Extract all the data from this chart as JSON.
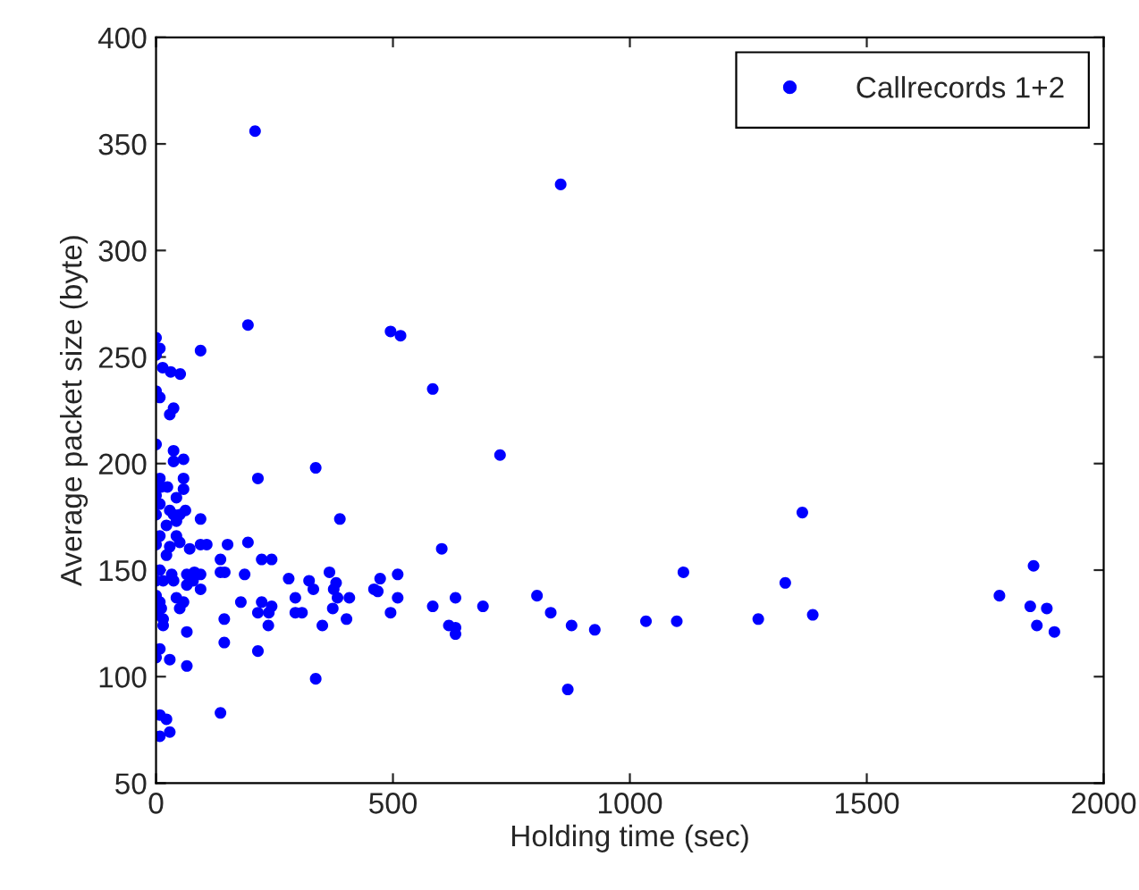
{
  "chart_data": {
    "type": "scatter",
    "xlabel": "Holding time (sec)",
    "ylabel": "Average packet size (byte)",
    "xlim": [
      0,
      2000
    ],
    "ylim": [
      50,
      400
    ],
    "xticks": [
      0,
      500,
      1000,
      1500,
      2000
    ],
    "yticks": [
      50,
      100,
      150,
      200,
      250,
      300,
      350,
      400
    ],
    "grid": false,
    "legend": "top right",
    "marker": "circle",
    "series": [
      {
        "name": "Callrecords 1+2",
        "color": "#0000ff",
        "x": [
          584,
          726,
          603,
          584,
          632,
          618,
          632,
          632,
          690,
          804,
          833,
          877,
          869,
          926,
          1034,
          1099,
          1113,
          1271,
          1328,
          1364,
          1386,
          1780,
          1845,
          1852,
          1859,
          1880,
          1896,
          209,
          854,
          0,
          8,
          0,
          94,
          194,
          495,
          516,
          14,
          31,
          51,
          0,
          8,
          37,
          29,
          0,
          37,
          37,
          58,
          337,
          215,
          8,
          58,
          11,
          24,
          58,
          0,
          43,
          8,
          0,
          29,
          37,
          62,
          50,
          94,
          388,
          22,
          43,
          8,
          43,
          50,
          0,
          29,
          71,
          94,
          107,
          151,
          194,
          22,
          136,
          223,
          244,
          8,
          33,
          65,
          81,
          94,
          136,
          145,
          187,
          0,
          15,
          37,
          65,
          78,
          94,
          280,
          323,
          332,
          366,
          380,
          375,
          460,
          468,
          473,
          510,
          510,
          0,
          8,
          43,
          58,
          179,
          223,
          294,
          383,
          408,
          11,
          50,
          215,
          238,
          244,
          294,
          308,
          373,
          495,
          402,
          0,
          15,
          15,
          144,
          237,
          351,
          65,
          144,
          8,
          0,
          29,
          65,
          215,
          337,
          136,
          8,
          22,
          29,
          8
        ],
        "values": [
          235,
          204,
          160,
          133,
          137,
          124,
          123,
          120,
          133,
          138,
          130,
          124,
          94,
          122,
          126,
          126,
          149,
          127,
          144,
          177,
          129,
          138,
          133,
          152,
          124,
          132,
          121,
          356,
          331,
          259,
          254,
          251,
          253,
          265,
          262,
          260,
          245,
          243,
          242,
          234,
          231,
          226,
          223,
          209,
          206,
          201,
          202,
          198,
          193,
          193,
          193,
          189,
          189,
          188,
          185,
          184,
          181,
          176,
          178,
          176,
          178,
          176,
          174,
          174,
          171,
          173,
          166,
          166,
          163,
          162,
          161,
          160,
          162,
          162,
          162,
          163,
          157,
          155,
          155,
          155,
          150,
          148,
          148,
          149,
          148,
          149,
          149,
          148,
          145,
          145,
          145,
          143,
          145,
          141,
          146,
          145,
          141,
          149,
          144,
          141,
          141,
          140,
          146,
          148,
          137,
          138,
          135,
          137,
          135,
          135,
          135,
          137,
          137,
          137,
          132,
          132,
          130,
          130,
          133,
          130,
          130,
          132,
          130,
          127,
          129,
          127,
          124,
          127,
          124,
          124,
          121,
          116,
          113,
          109,
          108,
          105,
          112,
          99,
          83,
          82,
          80,
          74,
          72
        ]
      }
    ]
  }
}
